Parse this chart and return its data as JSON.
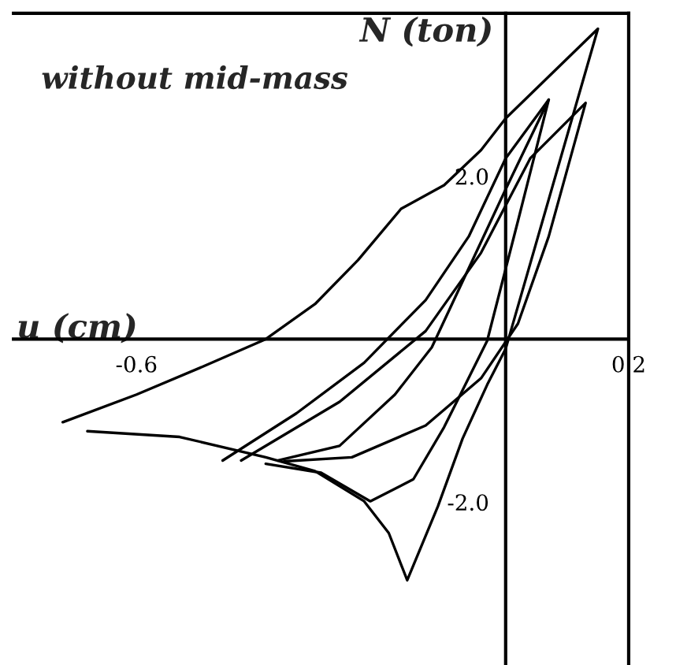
{
  "chart_data": {
    "type": "line",
    "xlabel": "u (cm)",
    "ylabel": "N (ton)",
    "annotations": [
      "without mid-mass"
    ],
    "xlim": [
      -0.8,
      0.2
    ],
    "ylim": [
      -4.0,
      4.0
    ],
    "xticks": [
      {
        "value": -0.6,
        "label": "-0.6"
      },
      {
        "value": 0.2,
        "label": "0.2"
      }
    ],
    "yticks": [
      {
        "value": -2.0,
        "label": "-2.0"
      },
      {
        "value": 2.0,
        "label": "2.0"
      }
    ],
    "grid": false,
    "legend": false,
    "marker": "none",
    "line_style": "solid",
    "series": [
      {
        "color": "#000000",
        "x": [
          -0.72,
          -0.6,
          -0.49,
          -0.39,
          -0.31,
          -0.24,
          -0.17,
          -0.1,
          -0.04,
          0.0,
          0.15,
          0.0,
          -0.03,
          -0.07,
          -0.11,
          -0.16,
          -0.19,
          -0.23,
          -0.31,
          -0.39,
          -0.53,
          -0.68
        ],
        "values": [
          -1.02,
          -0.68,
          -0.33,
          0.0,
          0.43,
          0.97,
          1.6,
          1.89,
          2.32,
          2.71,
          3.81,
          -0.12,
          -0.56,
          -1.22,
          -2.05,
          -2.96,
          -2.38,
          -1.99,
          -1.62,
          -1.45,
          -1.2,
          -1.13
        ]
      },
      {
        "color": "#000000",
        "x": [
          -0.46,
          -0.34,
          -0.23,
          -0.13,
          -0.06,
          0.0,
          0.07,
          0.02,
          -0.03,
          -0.1,
          -0.15,
          -0.22,
          -0.3,
          -0.39
        ],
        "values": [
          -1.49,
          -0.91,
          -0.29,
          0.48,
          1.26,
          2.22,
          2.94,
          1.45,
          -0.02,
          -1.08,
          -1.72,
          -1.99,
          -1.64,
          -1.53
        ]
      },
      {
        "color": "#000000",
        "x": [
          -0.43,
          -0.27,
          -0.13,
          -0.04,
          0.04,
          0.13,
          0.07,
          0.02,
          -0.04,
          -0.13,
          -0.25,
          -0.36
        ],
        "values": [
          -1.49,
          -0.77,
          0.1,
          1.06,
          2.22,
          2.9,
          1.26,
          0.19,
          -0.48,
          -1.06,
          -1.45,
          -1.5
        ]
      },
      {
        "color": "#000000",
        "x": [
          -0.37,
          -0.27,
          -0.18,
          -0.12,
          -0.06,
          0.0,
          0.07
        ],
        "values": [
          -1.49,
          -1.31,
          -0.68,
          -0.1,
          0.87,
          1.84,
          2.94
        ]
      }
    ]
  }
}
